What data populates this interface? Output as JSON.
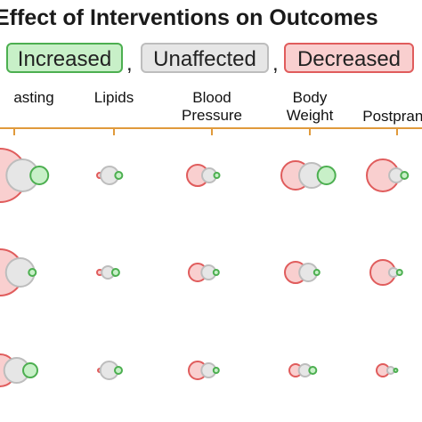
{
  "colors": {
    "increased": "#4caf50",
    "unaffected": "#bdbdbd",
    "decreased": "#e05c5c",
    "increased_fill": "#c8f0c8",
    "unaffected_fill": "#e6e6e6",
    "decreased_fill": "#f9cfcf",
    "axis": "#e09a3c"
  },
  "title": "Effect of Interventions on Outcomes",
  "legend": {
    "increased": "Increased",
    "comma1": ",",
    "unaffected": "Unaffected",
    "comma2": ",",
    "decreased": "Decreased"
  },
  "chart_data": {
    "type": "bubble-matrix",
    "columns": [
      "Fasting",
      "Lipids",
      "Blood Pressure",
      "Body Weight",
      "Postprandial"
    ],
    "column_labels": [
      [
        "asting"
      ],
      [
        "Lipids"
      ],
      [
        "Blood",
        "Pressure"
      ],
      [
        "Body",
        "Weight"
      ],
      [
        "Postprand"
      ]
    ],
    "rows": [
      [
        {
          "decreased": 30,
          "unaffected": 18,
          "increased": 10
        },
        {
          "decreased": 3,
          "unaffected": 10,
          "increased": 4
        },
        {
          "decreased": 12,
          "unaffected": 8,
          "increased": 3
        },
        {
          "decreased": 16,
          "unaffected": 14,
          "increased": 10
        },
        {
          "decreased": 18,
          "unaffected": 8,
          "increased": 4
        }
      ],
      [
        {
          "decreased": 26,
          "unaffected": 16,
          "increased": 4
        },
        {
          "decreased": 3,
          "unaffected": 7,
          "increased": 4
        },
        {
          "decreased": 10,
          "unaffected": 8,
          "increased": 3
        },
        {
          "decreased": 12,
          "unaffected": 10,
          "increased": 3
        },
        {
          "decreased": 14,
          "unaffected": 5,
          "increased": 3
        }
      ],
      [
        {
          "decreased": 18,
          "unaffected": 14,
          "increased": 8
        },
        {
          "decreased": 2,
          "unaffected": 10,
          "increased": 4
        },
        {
          "decreased": 10,
          "unaffected": 8,
          "increased": 3
        },
        {
          "decreased": 7,
          "unaffected": 7,
          "increased": 4
        },
        {
          "decreased": 7,
          "unaffected": 4,
          "increased": 2
        }
      ]
    ]
  }
}
